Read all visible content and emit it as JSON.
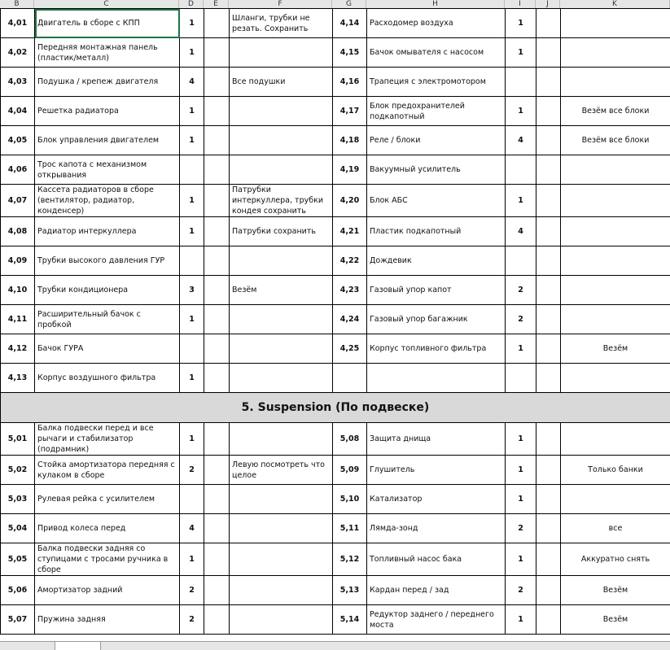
{
  "columns": [
    "B",
    "C",
    "D",
    "E",
    "F",
    "G",
    "H",
    "I",
    "J",
    "K"
  ],
  "selected_cell": "C 4,01",
  "upper_rows": [
    {
      "left": [
        "4,01",
        "Двигатель в сборе с КПП",
        "1",
        "",
        "Шланги, трубки не резать. Сохранить"
      ],
      "right": [
        "4,14",
        "Расходомер воздуха",
        "1",
        "",
        ""
      ]
    },
    {
      "left": [
        "4,02",
        "Передняя монтажная панель (пластик/металл)",
        "1",
        "",
        ""
      ],
      "right": [
        "4,15",
        "Бачок омывателя с насосом",
        "1",
        "",
        ""
      ]
    },
    {
      "left": [
        "4,03",
        "Подушка / крепеж двигателя",
        "4",
        "",
        "Все подушки"
      ],
      "right": [
        "4,16",
        "Трапеция с электромотором",
        "",
        "",
        ""
      ]
    },
    {
      "left": [
        "4,04",
        "Решетка радиатора",
        "1",
        "",
        ""
      ],
      "right": [
        "4,17",
        "Блок предохранителей подкапотный",
        "1",
        "",
        "Везём все блоки"
      ]
    },
    {
      "left": [
        "4,05",
        "Блок управления двигателем",
        "1",
        "",
        ""
      ],
      "right": [
        "4,18",
        "Реле / блоки",
        "4",
        "",
        "Везём все блоки"
      ]
    },
    {
      "left": [
        "4,06",
        "Трос капота с механизмом открывания",
        "",
        "",
        ""
      ],
      "right": [
        "4,19",
        "Вакуумный усилитель",
        "",
        "",
        ""
      ]
    },
    {
      "left": [
        "4,07",
        "Кассета радиаторов в сборе (вентилятор, радиатор, конденсер)",
        "1",
        "",
        "Патрубки интеркуллера, трубки кондея сохранить"
      ],
      "right": [
        "4,20",
        "Блок АБС",
        "1",
        "",
        ""
      ]
    },
    {
      "left": [
        "4,08",
        "Радиатор интеркуллера",
        "1",
        "",
        "Патрубки сохранить"
      ],
      "right": [
        "4,21",
        "Пластик подкапотный",
        "4",
        "",
        ""
      ]
    },
    {
      "left": [
        "4,09",
        "Трубки высокого давления ГУР",
        "",
        "",
        ""
      ],
      "right": [
        "4,22",
        "Дождевик",
        "",
        "",
        ""
      ]
    },
    {
      "left": [
        "4,10",
        "Трубки кондиционера",
        "3",
        "",
        "Везём"
      ],
      "right": [
        "4,23",
        "Газовый упор капот",
        "2",
        "",
        ""
      ]
    },
    {
      "left": [
        "4,11",
        "Расширительный бачок с пробкой",
        "1",
        "",
        ""
      ],
      "right": [
        "4,24",
        "Газовый упор багажник",
        "2",
        "",
        ""
      ]
    },
    {
      "left": [
        "4,12",
        "Бачок ГУРА",
        "",
        "",
        ""
      ],
      "right": [
        "4,25",
        "Корпус топливного фильтра",
        "1",
        "",
        "Везём"
      ]
    },
    {
      "left": [
        "4,13",
        "Корпус воздушного фильтра",
        "1",
        "",
        ""
      ],
      "right": [
        "",
        "",
        "",
        "",
        ""
      ]
    }
  ],
  "section_title": "5. Suspension (По подвеске)",
  "lower_rows": [
    {
      "left": [
        "5,01",
        "Балка подвески перед и все рычаги и стабилизатор (подрамник)",
        "1",
        "",
        ""
      ],
      "right": [
        "5,08",
        "Защита днища",
        "1",
        "",
        ""
      ]
    },
    {
      "left": [
        "5,02",
        "Стойка амортизатора передняя с кулаком в сборе",
        "2",
        "",
        "Левую посмотреть что целое"
      ],
      "right": [
        "5,09",
        "Глушитель",
        "1",
        "",
        "Только банки"
      ]
    },
    {
      "left": [
        "5,03",
        "Рулевая рейка с усилителем",
        "",
        "",
        ""
      ],
      "right": [
        "5,10",
        "Катализатор",
        "1",
        "",
        ""
      ]
    },
    {
      "left": [
        "5,04",
        "Привод колеса перед",
        "4",
        "",
        ""
      ],
      "right": [
        "5,11",
        "Лямда-зонд",
        "2",
        "",
        "все"
      ]
    },
    {
      "left": [
        "5,05",
        "Балка подвески задняя со ступицами с тросами ручника в сборе",
        "1",
        "",
        ""
      ],
      "right": [
        "5,12",
        "Топливный насос бака",
        "1",
        "",
        "Аккуратно снять"
      ]
    },
    {
      "left": [
        "5,06",
        "Амортизатор задний",
        "2",
        "",
        ""
      ],
      "right": [
        "5,13",
        "Кардан перед / зад",
        "2",
        "",
        "Везём"
      ]
    },
    {
      "left": [
        "5,07",
        "Пружина задняя",
        "2",
        "",
        ""
      ],
      "right": [
        "5,14",
        "Редуктор заднего / переднего моста",
        "1",
        "",
        "Везём"
      ]
    }
  ]
}
